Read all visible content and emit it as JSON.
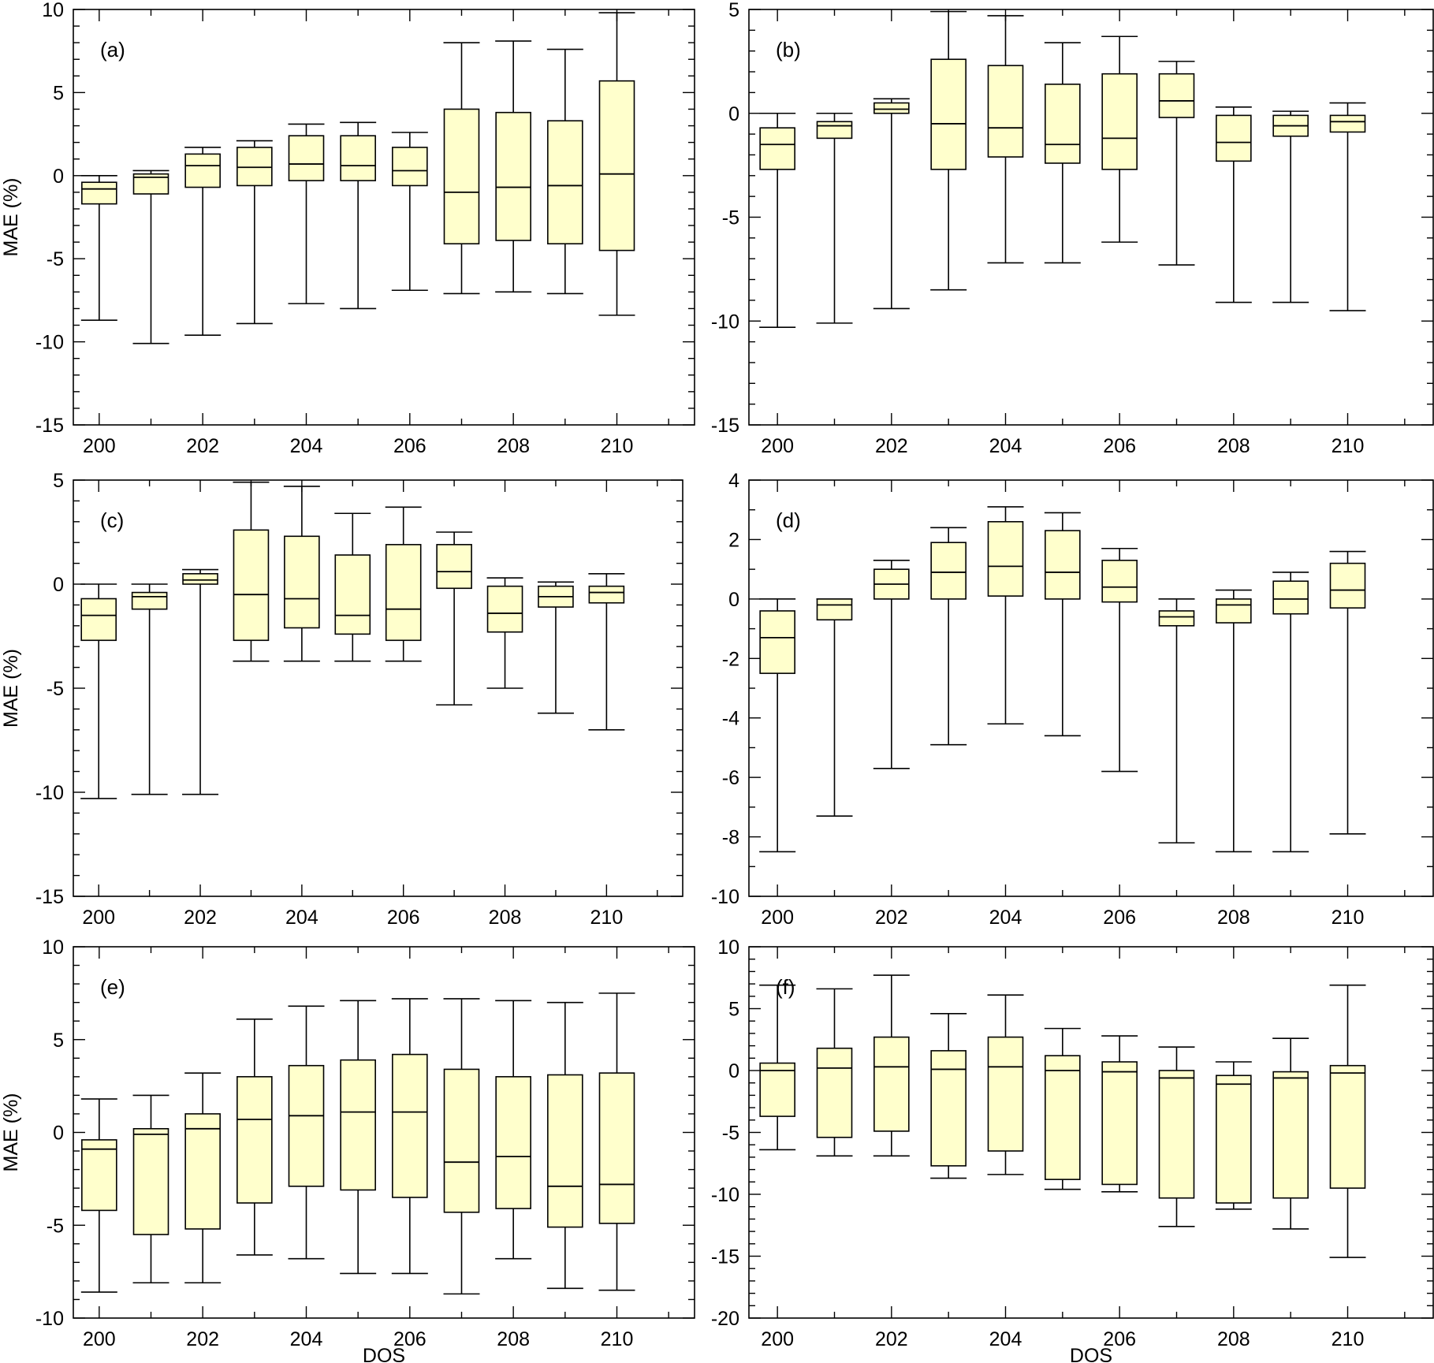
{
  "figure": {
    "shared_xlabel": "DOS",
    "box_fill": "#ffffcc",
    "stroke": "#000000"
  },
  "chart_data": [
    {
      "type": "box",
      "panel_label": "(a)",
      "xlabel": "",
      "ylabel": "MAE (%)",
      "xlim": [
        199.5,
        211.5
      ],
      "ylim": [
        -15,
        10
      ],
      "y_major_step": 5,
      "xticks": [
        200,
        202,
        204,
        206,
        208,
        210
      ],
      "yticks": [
        -15,
        -10,
        -5,
        0,
        5,
        10
      ],
      "boxes": [
        {
          "x": 200,
          "whislo": -8.7,
          "q1": -1.7,
          "med": -0.8,
          "q3": -0.4,
          "whishi": 0.0
        },
        {
          "x": 201,
          "whislo": -10.1,
          "q1": -1.1,
          "med": -0.1,
          "q3": 0.1,
          "whishi": 0.3
        },
        {
          "x": 202,
          "whislo": -9.6,
          "q1": -0.7,
          "med": 0.6,
          "q3": 1.3,
          "whishi": 1.7
        },
        {
          "x": 203,
          "whislo": -8.9,
          "q1": -0.6,
          "med": 0.5,
          "q3": 1.7,
          "whishi": 2.1
        },
        {
          "x": 204,
          "whislo": -7.7,
          "q1": -0.3,
          "med": 0.7,
          "q3": 2.4,
          "whishi": 3.1
        },
        {
          "x": 205,
          "whislo": -8.0,
          "q1": -0.3,
          "med": 0.6,
          "q3": 2.4,
          "whishi": 3.2
        },
        {
          "x": 206,
          "whislo": -6.9,
          "q1": -0.6,
          "med": 0.3,
          "q3": 1.7,
          "whishi": 2.6
        },
        {
          "x": 207,
          "whislo": -7.1,
          "q1": -4.1,
          "med": -1.0,
          "q3": 4.0,
          "whishi": 8.0
        },
        {
          "x": 208,
          "whislo": -7.0,
          "q1": -3.9,
          "med": -0.7,
          "q3": 3.8,
          "whishi": 8.1
        },
        {
          "x": 209,
          "whislo": -7.1,
          "q1": -4.1,
          "med": -0.6,
          "q3": 3.3,
          "whishi": 7.6
        },
        {
          "x": 210,
          "whislo": -8.4,
          "q1": -4.5,
          "med": 0.1,
          "q3": 5.7,
          "whishi": 9.8
        }
      ]
    },
    {
      "type": "box",
      "panel_label": "(b)",
      "xlabel": "",
      "ylabel": "",
      "xlim": [
        199.5,
        211.5
      ],
      "ylim": [
        -15,
        5
      ],
      "y_major_step": 5,
      "xticks": [
        200,
        202,
        204,
        206,
        208,
        210
      ],
      "yticks": [
        -15,
        -10,
        -5,
        0,
        5
      ],
      "boxes": [
        {
          "x": 200,
          "whislo": -10.3,
          "q1": -2.7,
          "med": -1.5,
          "q3": -0.7,
          "whishi": 0.0
        },
        {
          "x": 201,
          "whislo": -10.1,
          "q1": -1.2,
          "med": -0.6,
          "q3": -0.4,
          "whishi": 0.0
        },
        {
          "x": 202,
          "whislo": -9.4,
          "q1": 0.0,
          "med": 0.2,
          "q3": 0.5,
          "whishi": 0.7
        },
        {
          "x": 203,
          "whislo": -8.5,
          "q1": -2.7,
          "med": -0.5,
          "q3": 2.6,
          "whishi": 4.9
        },
        {
          "x": 204,
          "whislo": -7.2,
          "q1": -2.1,
          "med": -0.7,
          "q3": 2.3,
          "whishi": 4.7
        },
        {
          "x": 205,
          "whislo": -7.2,
          "q1": -2.4,
          "med": -1.5,
          "q3": 1.4,
          "whishi": 3.4
        },
        {
          "x": 206,
          "whislo": -6.2,
          "q1": -2.7,
          "med": -1.2,
          "q3": 1.9,
          "whishi": 3.7
        },
        {
          "x": 207,
          "whislo": -7.3,
          "q1": -0.2,
          "med": 0.6,
          "q3": 1.9,
          "whishi": 2.5
        },
        {
          "x": 208,
          "whislo": -9.1,
          "q1": -2.3,
          "med": -1.4,
          "q3": -0.1,
          "whishi": 0.3
        },
        {
          "x": 209,
          "whislo": -9.1,
          "q1": -1.1,
          "med": -0.6,
          "q3": -0.1,
          "whishi": 0.1
        },
        {
          "x": 210,
          "whislo": -9.5,
          "q1": -0.9,
          "med": -0.4,
          "q3": -0.1,
          "whishi": 0.5
        }
      ]
    },
    {
      "type": "box",
      "panel_label": "(c)",
      "xlabel": "",
      "ylabel": "MAE (%)",
      "xlim": [
        199.5,
        211.5
      ],
      "ylim": [
        -15,
        5
      ],
      "y_major_step": 5,
      "xticks": [
        200,
        202,
        204,
        206,
        208,
        210
      ],
      "yticks": [
        -15,
        -10,
        -5,
        0,
        5
      ],
      "boxes": [
        {
          "x": 200,
          "whislo": -10.3,
          "q1": -2.7,
          "med": -1.5,
          "q3": -0.7,
          "whishi": 0.0
        },
        {
          "x": 201,
          "whislo": -10.1,
          "q1": -1.2,
          "med": -0.6,
          "q3": -0.4,
          "whishi": 0.0
        },
        {
          "x": 202,
          "whislo": -10.1,
          "q1": 0.0,
          "med": 0.2,
          "q3": 0.5,
          "whishi": 0.7
        },
        {
          "x": 203,
          "whislo": -3.7,
          "q1": -2.7,
          "med": -0.5,
          "q3": 2.6,
          "whishi": 4.9
        },
        {
          "x": 204,
          "whislo": -3.7,
          "q1": -2.1,
          "med": -0.7,
          "q3": 2.3,
          "whishi": 4.7
        },
        {
          "x": 205,
          "whislo": -3.7,
          "q1": -2.4,
          "med": -1.5,
          "q3": 1.4,
          "whishi": 3.4
        },
        {
          "x": 206,
          "whislo": -3.7,
          "q1": -2.7,
          "med": -1.2,
          "q3": 1.9,
          "whishi": 3.7
        },
        {
          "x": 207,
          "whislo": -5.8,
          "q1": -0.2,
          "med": 0.6,
          "q3": 1.9,
          "whishi": 2.5
        },
        {
          "x": 208,
          "whislo": -5.0,
          "q1": -2.3,
          "med": -1.4,
          "q3": -0.1,
          "whishi": 0.3
        },
        {
          "x": 209,
          "whislo": -6.2,
          "q1": -1.1,
          "med": -0.6,
          "q3": -0.1,
          "whishi": 0.1
        },
        {
          "x": 210,
          "whislo": -7.0,
          "q1": -0.9,
          "med": -0.4,
          "q3": -0.1,
          "whishi": 0.5
        }
      ]
    },
    {
      "type": "box",
      "panel_label": "(d)",
      "xlabel": "",
      "ylabel": "",
      "xlim": [
        199.5,
        211.5
      ],
      "ylim": [
        -10,
        4
      ],
      "y_major_step": 2,
      "xticks": [
        200,
        202,
        204,
        206,
        208,
        210
      ],
      "yticks": [
        -10,
        -8,
        -6,
        -4,
        -2,
        0,
        2,
        4
      ],
      "boxes": [
        {
          "x": 200,
          "whislo": -8.5,
          "q1": -2.5,
          "med": -1.3,
          "q3": -0.4,
          "whishi": 0.0
        },
        {
          "x": 201,
          "whislo": -7.3,
          "q1": -0.7,
          "med": -0.2,
          "q3": 0.0,
          "whishi": 0.0
        },
        {
          "x": 202,
          "whislo": -5.7,
          "q1": 0.0,
          "med": 0.5,
          "q3": 1.0,
          "whishi": 1.3
        },
        {
          "x": 203,
          "whislo": -4.9,
          "q1": 0.0,
          "med": 0.9,
          "q3": 1.9,
          "whishi": 2.4
        },
        {
          "x": 204,
          "whislo": -4.2,
          "q1": 0.1,
          "med": 1.1,
          "q3": 2.6,
          "whishi": 3.1
        },
        {
          "x": 205,
          "whislo": -4.6,
          "q1": 0.0,
          "med": 0.9,
          "q3": 2.3,
          "whishi": 2.9
        },
        {
          "x": 206,
          "whislo": -5.8,
          "q1": -0.1,
          "med": 0.4,
          "q3": 1.3,
          "whishi": 1.7
        },
        {
          "x": 207,
          "whislo": -8.2,
          "q1": -0.9,
          "med": -0.6,
          "q3": -0.4,
          "whishi": 0.0
        },
        {
          "x": 208,
          "whislo": -8.5,
          "q1": -0.8,
          "med": -0.2,
          "q3": 0.0,
          "whishi": 0.3
        },
        {
          "x": 209,
          "whislo": -8.5,
          "q1": -0.5,
          "med": 0.0,
          "q3": 0.6,
          "whishi": 0.9
        },
        {
          "x": 210,
          "whislo": -7.9,
          "q1": -0.3,
          "med": 0.3,
          "q3": 1.2,
          "whishi": 1.6
        }
      ]
    },
    {
      "type": "box",
      "panel_label": "(e)",
      "xlabel": "DOS",
      "ylabel": "MAE (%)",
      "xlim": [
        199.5,
        211.5
      ],
      "ylim": [
        -10,
        10
      ],
      "y_major_step": 5,
      "xticks": [
        200,
        202,
        204,
        206,
        208,
        210
      ],
      "yticks": [
        -10,
        -5,
        0,
        5,
        10
      ],
      "boxes": [
        {
          "x": 200,
          "whislo": -8.6,
          "q1": -4.2,
          "med": -0.9,
          "q3": -0.4,
          "whishi": 1.8
        },
        {
          "x": 201,
          "whislo": -8.1,
          "q1": -5.5,
          "med": -0.1,
          "q3": 0.2,
          "whishi": 2.0
        },
        {
          "x": 202,
          "whislo": -8.1,
          "q1": -5.2,
          "med": 0.2,
          "q3": 1.0,
          "whishi": 3.2
        },
        {
          "x": 203,
          "whislo": -6.6,
          "q1": -3.8,
          "med": 0.7,
          "q3": 3.0,
          "whishi": 6.1
        },
        {
          "x": 204,
          "whislo": -6.8,
          "q1": -2.9,
          "med": 0.9,
          "q3": 3.6,
          "whishi": 6.8
        },
        {
          "x": 205,
          "whislo": -7.6,
          "q1": -3.1,
          "med": 1.1,
          "q3": 3.9,
          "whishi": 7.1
        },
        {
          "x": 206,
          "whislo": -7.6,
          "q1": -3.5,
          "med": 1.1,
          "q3": 4.2,
          "whishi": 7.2
        },
        {
          "x": 207,
          "whislo": -8.7,
          "q1": -4.3,
          "med": -1.6,
          "q3": 3.4,
          "whishi": 7.2
        },
        {
          "x": 208,
          "whislo": -6.8,
          "q1": -4.1,
          "med": -1.3,
          "q3": 3.0,
          "whishi": 7.1
        },
        {
          "x": 209,
          "whislo": -8.4,
          "q1": -5.1,
          "med": -2.9,
          "q3": 3.1,
          "whishi": 7.0
        },
        {
          "x": 210,
          "whislo": -8.5,
          "q1": -4.9,
          "med": -2.8,
          "q3": 3.2,
          "whishi": 7.5
        }
      ]
    },
    {
      "type": "box",
      "panel_label": "(f)",
      "xlabel": "DOS",
      "ylabel": "",
      "xlim": [
        199.5,
        211.5
      ],
      "ylim": [
        -20,
        10
      ],
      "y_major_step": 5,
      "xticks": [
        200,
        202,
        204,
        206,
        208,
        210
      ],
      "yticks": [
        -20,
        -15,
        -10,
        -5,
        0,
        5,
        10
      ],
      "boxes": [
        {
          "x": 200,
          "whislo": -6.4,
          "q1": -3.7,
          "med": 0.0,
          "q3": 0.6,
          "whishi": 6.9
        },
        {
          "x": 201,
          "whislo": -6.9,
          "q1": -5.4,
          "med": 0.2,
          "q3": 1.8,
          "whishi": 6.6
        },
        {
          "x": 202,
          "whislo": -6.9,
          "q1": -4.9,
          "med": 0.3,
          "q3": 2.7,
          "whishi": 7.7
        },
        {
          "x": 203,
          "whislo": -8.7,
          "q1": -7.7,
          "med": 0.1,
          "q3": 1.6,
          "whishi": 4.6
        },
        {
          "x": 204,
          "whislo": -8.4,
          "q1": -6.5,
          "med": 0.3,
          "q3": 2.7,
          "whishi": 6.1
        },
        {
          "x": 205,
          "whislo": -9.6,
          "q1": -8.8,
          "med": 0.0,
          "q3": 1.2,
          "whishi": 3.4
        },
        {
          "x": 206,
          "whislo": -9.8,
          "q1": -9.2,
          "med": -0.1,
          "q3": 0.7,
          "whishi": 2.8
        },
        {
          "x": 207,
          "whislo": -12.6,
          "q1": -10.3,
          "med": -0.6,
          "q3": 0.0,
          "whishi": 1.9
        },
        {
          "x": 208,
          "whislo": -11.2,
          "q1": -10.7,
          "med": -1.1,
          "q3": -0.4,
          "whishi": 0.7
        },
        {
          "x": 209,
          "whislo": -12.8,
          "q1": -10.3,
          "med": -0.6,
          "q3": -0.1,
          "whishi": 2.6
        },
        {
          "x": 210,
          "whislo": -15.1,
          "q1": -9.5,
          "med": -0.2,
          "q3": 0.4,
          "whishi": 6.9
        }
      ]
    }
  ]
}
